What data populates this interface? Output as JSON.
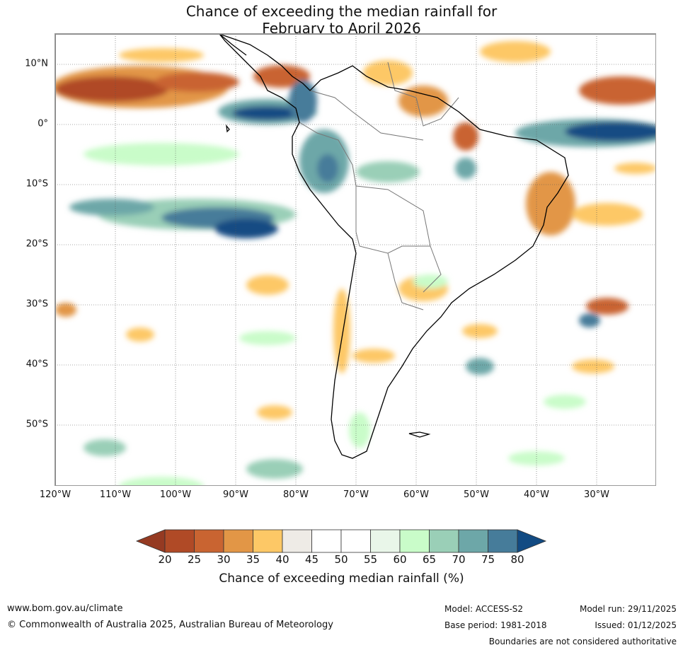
{
  "title": {
    "line1": "Chance of exceeding the median rainfall for",
    "line2": "February to April 2026"
  },
  "map": {
    "lat_labels": [
      "10°N",
      "0°",
      "10°S",
      "20°S",
      "30°S",
      "40°S",
      "50°S"
    ],
    "lon_labels": [
      "120°W",
      "110°W",
      "100°W",
      "90°W",
      "80°W",
      "70°W",
      "60°W",
      "50°W",
      "40°W",
      "30°W"
    ]
  },
  "colorbar": {
    "label": "Chance of exceeding median rainfall (%)",
    "ticks": [
      "20",
      "25",
      "30",
      "35",
      "40",
      "45",
      "50",
      "55",
      "60",
      "65",
      "70",
      "75",
      "80"
    ],
    "colors": [
      "#953a22",
      "#b04a26",
      "#c96431",
      "#e29646",
      "#fdc866",
      "#eeebe6",
      "#ffffff",
      "#ffffff",
      "#e9f6e9",
      "#c9fcc9",
      "#9acfb7",
      "#6da7a8",
      "#467c9a",
      "#124b83"
    ]
  },
  "footer": {
    "website": "www.bom.gov.au/climate",
    "copyright": "© Commonwealth of Australia 2025, Australian Bureau of Meteorology",
    "model": "Model: ACCESS-S2",
    "base_period": "Base period: 1981-2018",
    "model_run": "Model run: 29/11/2025",
    "issued": "Issued: 01/12/2025",
    "disclaimer": "Boundaries are not considered authoritative"
  }
}
